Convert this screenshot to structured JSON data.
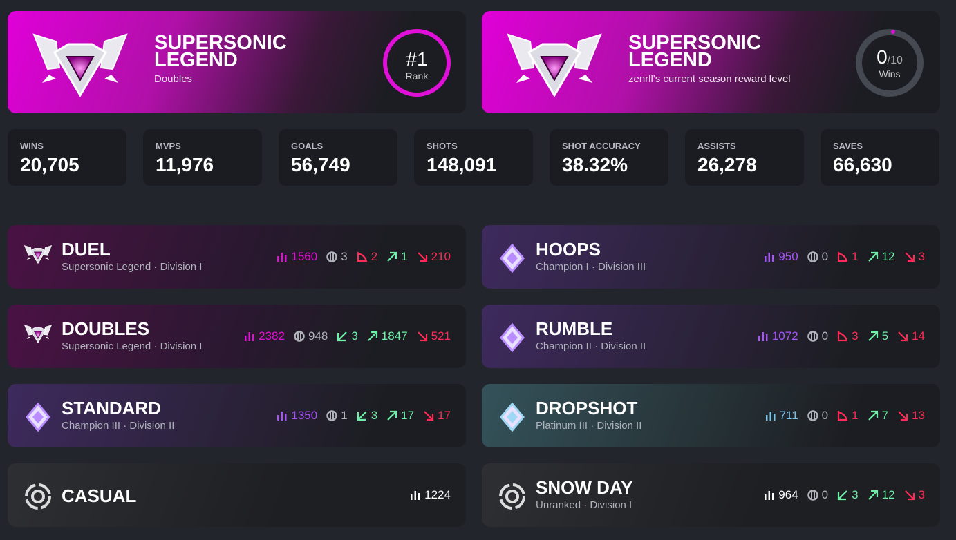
{
  "colors": {
    "pink": "#e012d2",
    "purple": "#a855f7",
    "teal": "#7cc3e8",
    "green": "#6ef0a8",
    "red": "#ff2a55",
    "gray": "#b0b3ba",
    "white": "#ffffff"
  },
  "hero": [
    {
      "title": "SUPERSONIC LEGEND",
      "sub": "Doubles",
      "ring_main": "#1",
      "ring_label": "Rank"
    },
    {
      "title": "SUPERSONIC LEGEND",
      "sub": "zenrll's current season reward level",
      "ring_main": "0",
      "ring_of": "/10",
      "ring_label": "Wins",
      "progress": 0
    }
  ],
  "stats": [
    {
      "label": "WINS",
      "value": "20,705"
    },
    {
      "label": "MVPS",
      "value": "11,976"
    },
    {
      "label": "GOALS",
      "value": "56,749"
    },
    {
      "label": "SHOTS",
      "value": "148,091"
    },
    {
      "label": "SHOT ACCURACY",
      "value": "38.32%"
    },
    {
      "label": "ASSISTS",
      "value": "26,278"
    },
    {
      "label": "SAVES",
      "value": "66,630"
    }
  ],
  "playlists": [
    {
      "name": "DUEL",
      "rank": "Supersonic Legend · Division I",
      "theme": "pink",
      "icon": "ssl-icon",
      "stats": [
        {
          "icon": "bars",
          "color": "pink",
          "v": "1560"
        },
        {
          "icon": "ball",
          "color": "gray",
          "v": "3"
        },
        {
          "icon": "tri-down",
          "color": "red",
          "v": "2"
        },
        {
          "icon": "up",
          "color": "green",
          "v": "1"
        },
        {
          "icon": "down",
          "color": "red",
          "v": "210"
        }
      ]
    },
    {
      "name": "HOOPS",
      "rank": "Champion I · Division III",
      "theme": "purple",
      "icon": "champion-icon",
      "stats": [
        {
          "icon": "bars",
          "color": "purple",
          "v": "950"
        },
        {
          "icon": "ball",
          "color": "gray",
          "v": "0"
        },
        {
          "icon": "tri-down",
          "color": "red",
          "v": "1"
        },
        {
          "icon": "up",
          "color": "green",
          "v": "12"
        },
        {
          "icon": "down",
          "color": "red",
          "v": "3"
        }
      ]
    },
    {
      "name": "DOUBLES",
      "rank": "Supersonic Legend · Division I",
      "theme": "pink",
      "icon": "ssl-icon",
      "stats": [
        {
          "icon": "bars",
          "color": "pink",
          "v": "2382"
        },
        {
          "icon": "ball",
          "color": "gray",
          "v": "948"
        },
        {
          "icon": "tri-up",
          "color": "green",
          "v": "3"
        },
        {
          "icon": "up",
          "color": "green",
          "v": "1847"
        },
        {
          "icon": "down",
          "color": "red",
          "v": "521"
        }
      ]
    },
    {
      "name": "RUMBLE",
      "rank": "Champion II · Division II",
      "theme": "purple",
      "icon": "champion-icon",
      "stats": [
        {
          "icon": "bars",
          "color": "purple",
          "v": "1072"
        },
        {
          "icon": "ball",
          "color": "gray",
          "v": "0"
        },
        {
          "icon": "tri-down",
          "color": "red",
          "v": "3"
        },
        {
          "icon": "up",
          "color": "green",
          "v": "5"
        },
        {
          "icon": "down",
          "color": "red",
          "v": "14"
        }
      ]
    },
    {
      "name": "STANDARD",
      "rank": "Champion III · Division II",
      "theme": "purple",
      "icon": "champion-icon",
      "stats": [
        {
          "icon": "bars",
          "color": "purple",
          "v": "1350"
        },
        {
          "icon": "ball",
          "color": "gray",
          "v": "1"
        },
        {
          "icon": "tri-up",
          "color": "green",
          "v": "3"
        },
        {
          "icon": "up",
          "color": "green",
          "v": "17"
        },
        {
          "icon": "down",
          "color": "red",
          "v": "17"
        }
      ]
    },
    {
      "name": "DROPSHOT",
      "rank": "Platinum III · Division II",
      "theme": "teal",
      "icon": "platinum-icon",
      "stats": [
        {
          "icon": "bars",
          "color": "teal",
          "v": "711"
        },
        {
          "icon": "ball",
          "color": "gray",
          "v": "0"
        },
        {
          "icon": "tri-down",
          "color": "red",
          "v": "1"
        },
        {
          "icon": "up",
          "color": "green",
          "v": "7"
        },
        {
          "icon": "down",
          "color": "red",
          "v": "13"
        }
      ]
    },
    {
      "name": "CASUAL",
      "rank": "",
      "theme": "none",
      "icon": "unranked-icon",
      "stats": [
        {
          "icon": "bars",
          "color": "white",
          "v": "1224"
        }
      ]
    },
    {
      "name": "SNOW DAY",
      "rank": "Unranked · Division I",
      "theme": "none",
      "icon": "unranked-icon",
      "stats": [
        {
          "icon": "bars",
          "color": "white",
          "v": "964"
        },
        {
          "icon": "ball",
          "color": "gray",
          "v": "0"
        },
        {
          "icon": "tri-up",
          "color": "green",
          "v": "3"
        },
        {
          "icon": "up",
          "color": "green",
          "v": "12"
        },
        {
          "icon": "down",
          "color": "red",
          "v": "3"
        }
      ]
    }
  ]
}
